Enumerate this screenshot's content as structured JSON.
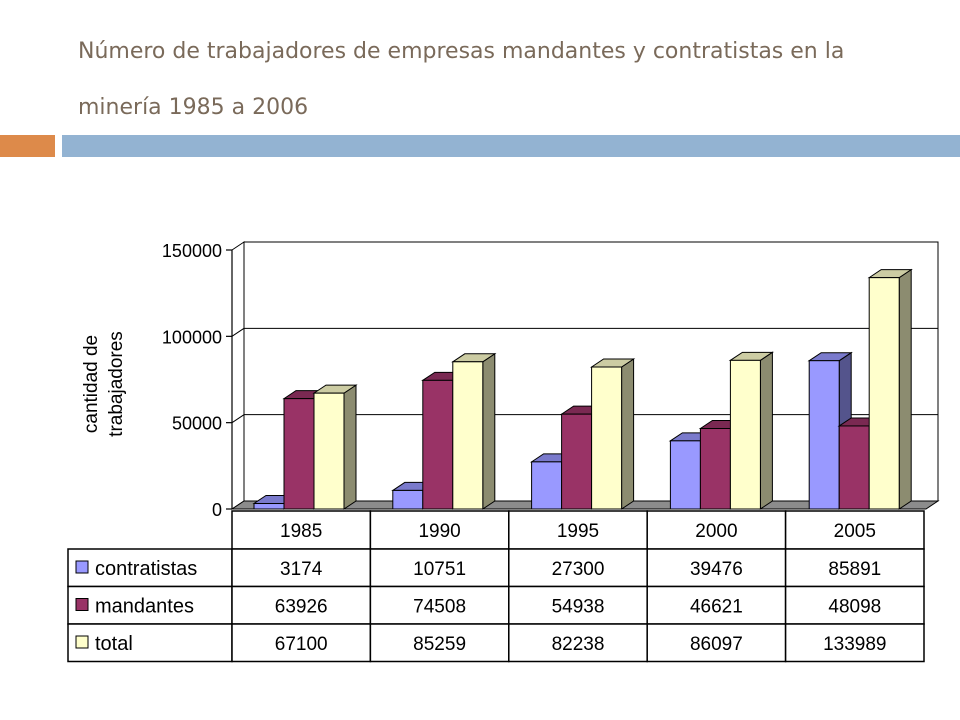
{
  "slide": {
    "title": "Número de trabajadores de empresas mandantes y contratistas en la minería 1985 a 2006"
  },
  "colors": {
    "accent_orange": "#dd8a4a",
    "accent_blue": "#93b3d2",
    "title_text": "#7a6a5a"
  },
  "chart_data": {
    "type": "bar",
    "style": "3d-clustered-column-with-data-table",
    "title": "",
    "xlabel": "",
    "ylabel": "cantidad de trabajadores",
    "ylabel_lines": [
      "cantidad de",
      "trabajadores"
    ],
    "categories": [
      "1985",
      "1990",
      "1995",
      "2000",
      "2005"
    ],
    "series": [
      {
        "name": "contratistas",
        "color": "#9999ff",
        "values": [
          3174,
          10751,
          27300,
          39476,
          85891
        ]
      },
      {
        "name": "mandantes",
        "color": "#993366",
        "values": [
          63926,
          74508,
          54938,
          46621,
          48098
        ]
      },
      {
        "name": "total",
        "color": "#ffffcc",
        "values": [
          67100,
          85259,
          82238,
          86097,
          133989
        ]
      }
    ],
    "ylim": [
      0,
      150000
    ],
    "yticks": [
      "0",
      "50000",
      "100000",
      "150000"
    ],
    "grid": true,
    "legend": "data-table-left"
  }
}
